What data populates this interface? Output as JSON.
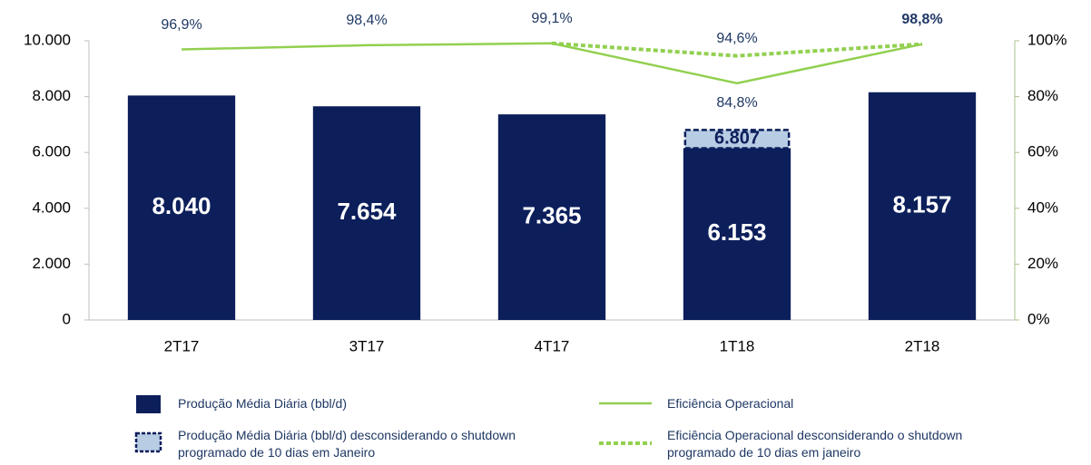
{
  "chart_data": {
    "type": "bar-line",
    "categories": [
      "2T17",
      "3T17",
      "4T17",
      "1T18",
      "2T18"
    ],
    "series": [
      {
        "name": "Produção Média Diária (bbl/d)",
        "type": "bar",
        "color": "#0c1f5b",
        "values": [
          8040,
          7654,
          7365,
          6153,
          8157
        ],
        "value_labels": [
          "8.040",
          "7.654",
          "7.365",
          "6.153",
          "8.157"
        ]
      },
      {
        "name": "Produção Média Diária (bbl/d) desconsiderando o shutdown programado de 10 dias em Janeiro",
        "type": "bar-dashed",
        "color": "#b8cce4",
        "values": [
          null,
          null,
          null,
          6807,
          null
        ],
        "value_labels": [
          null,
          null,
          null,
          "6.807",
          null
        ]
      },
      {
        "name": "Eficiência Operacional",
        "type": "line",
        "axis": "y2",
        "color": "#92d050",
        "values": [
          96.9,
          98.4,
          99.1,
          84.8,
          98.8
        ],
        "value_labels": [
          "96,9%",
          "98,4%",
          "99,1%",
          "84,8%",
          "98,8%"
        ]
      },
      {
        "name": "Eficiência Operacional desconsiderando o shutdown programado de 10 dias em janeiro",
        "type": "line-dashed",
        "axis": "y2",
        "color": "#92d050",
        "values": [
          null,
          null,
          99.1,
          94.6,
          98.8
        ],
        "value_labels": [
          null,
          null,
          null,
          "94,6%",
          null
        ]
      }
    ],
    "ylim": [
      0,
      10000
    ],
    "yticks": [
      0,
      {
        "value": 2000,
        "label": "2.000"
      },
      {
        "value": 4000,
        "label": "4.000"
      },
      {
        "value": 6000,
        "label": "6.000"
      },
      {
        "value": 8000,
        "label": "8.000"
      },
      {
        "value": 10000,
        "label": "10.000"
      }
    ],
    "y2lim": [
      0,
      100
    ],
    "y2ticks": [
      {
        "value": 0,
        "label": "0%"
      },
      {
        "value": 20,
        "label": "20%"
      },
      {
        "value": 40,
        "label": "40%"
      },
      {
        "value": 60,
        "label": "60%"
      },
      {
        "value": 80,
        "label": "80%"
      },
      {
        "value": 100,
        "label": "100%"
      }
    ]
  }
}
